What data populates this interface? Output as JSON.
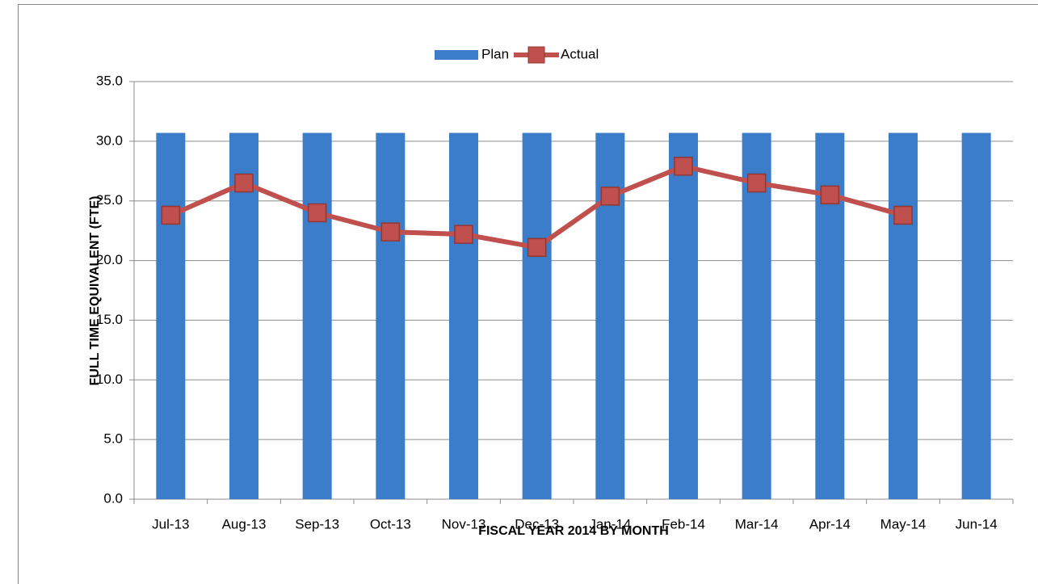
{
  "chart_data": {
    "type": "bar-line",
    "x_label": "FISCAL YEAR 2014 BY MONTH",
    "y_label": "FULL TIME EQUIVALENT (FTE)",
    "categories": [
      "Jul-13",
      "Aug-13",
      "Sep-13",
      "Oct-13",
      "Nov-13",
      "Dec-13",
      "Jan-14",
      "Feb-14",
      "Mar-14",
      "Apr-14",
      "May-14",
      "Jun-14"
    ],
    "series": [
      {
        "name": "Plan",
        "type": "bar",
        "color": "#3b7dc9",
        "values": [
          30.7,
          30.7,
          30.7,
          30.7,
          30.7,
          30.7,
          30.7,
          30.7,
          30.7,
          30.7,
          30.7,
          30.7
        ]
      },
      {
        "name": "Actual",
        "type": "line",
        "color": "#c0504d",
        "values": [
          23.8,
          26.5,
          24.0,
          22.4,
          22.2,
          21.1,
          25.4,
          27.9,
          26.5,
          25.5,
          23.8,
          null
        ]
      }
    ],
    "ylim": [
      0,
      35
    ],
    "yticks": [
      {
        "value": 0,
        "label": "0.0"
      },
      {
        "value": 5,
        "label": "5.0"
      },
      {
        "value": 10,
        "label": "10.0"
      },
      {
        "value": 15,
        "label": "15.0"
      },
      {
        "value": 20,
        "label": "20.0"
      },
      {
        "value": 25,
        "label": "25.0"
      },
      {
        "value": 30,
        "label": "30.0"
      },
      {
        "value": 35,
        "label": "35.0"
      }
    ],
    "grid": true,
    "legend": "top"
  }
}
